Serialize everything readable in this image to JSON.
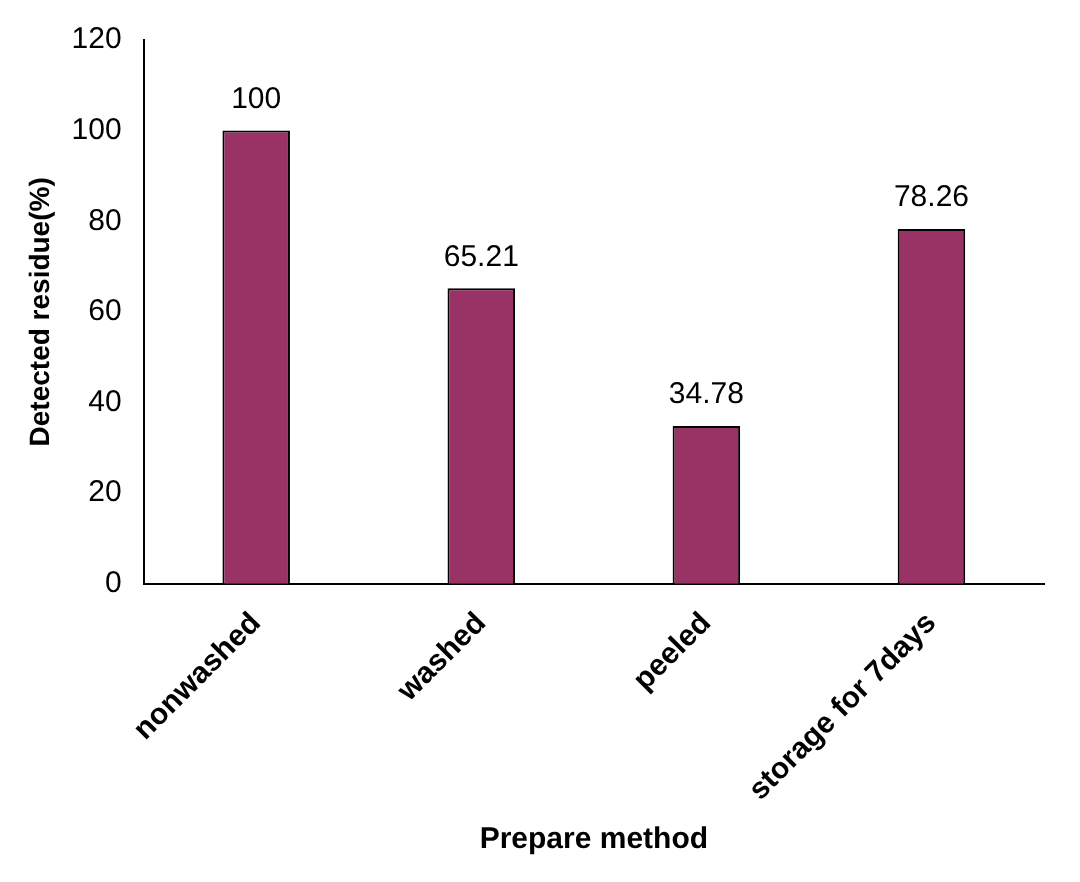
{
  "chart_data": {
    "type": "bar",
    "xlabel": "Prepare method",
    "ylabel": "Detected residue(%)",
    "categories": [
      "nonwashed",
      "washed",
      "peeled",
      "storage for 7days"
    ],
    "values": [
      100,
      65.21,
      34.78,
      78.26
    ],
    "color": "#993366",
    "ylim": [
      0,
      120
    ],
    "yticks": [
      0,
      20,
      40,
      60,
      80,
      100,
      120
    ],
    "grid": false,
    "legend": false,
    "data_labels": true
  }
}
